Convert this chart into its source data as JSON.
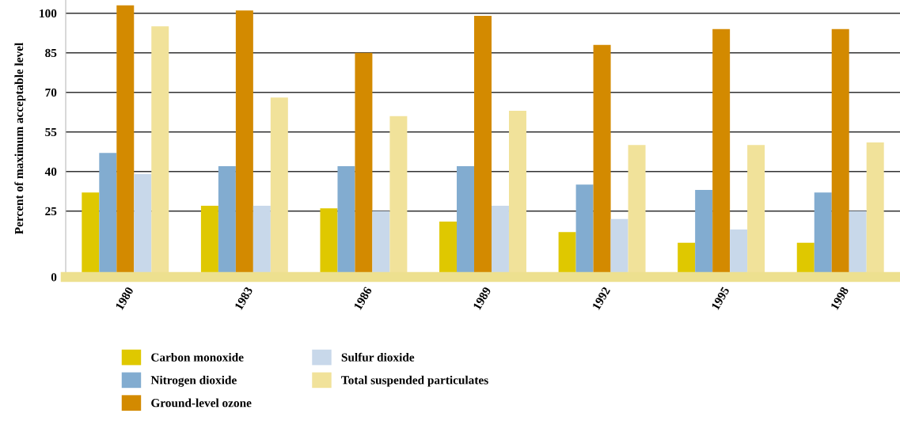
{
  "chart_data": {
    "type": "bar",
    "ylabel": "Percent of maximum acceptable level",
    "categories": [
      "1980",
      "1983",
      "1986",
      "1989",
      "1992",
      "1995",
      "1998"
    ],
    "series": [
      {
        "name": "Carbon monoxide",
        "color": "#dfc800",
        "values": [
          32,
          27,
          26,
          21,
          17,
          13,
          13
        ]
      },
      {
        "name": "Nitrogen dioxide",
        "color": "#82acd0",
        "values": [
          47,
          42,
          42,
          42,
          35,
          33,
          32
        ]
      },
      {
        "name": "Ground-level ozone",
        "color": "#d38a00",
        "values": [
          103,
          101,
          85,
          99,
          88,
          94,
          94
        ]
      },
      {
        "name": "Sulfur dioxide",
        "color": "#c8d8ea",
        "values": [
          39,
          27,
          25,
          27,
          22,
          18,
          25
        ]
      },
      {
        "name": "Total suspended particulates",
        "color": "#f1e29a",
        "values": [
          95,
          68,
          61,
          63,
          50,
          50,
          51
        ]
      }
    ],
    "ylim": [
      0,
      105
    ],
    "yticks": [
      0,
      25,
      40,
      55,
      70,
      85,
      100
    ],
    "grid": "y",
    "legend": "bottom"
  }
}
